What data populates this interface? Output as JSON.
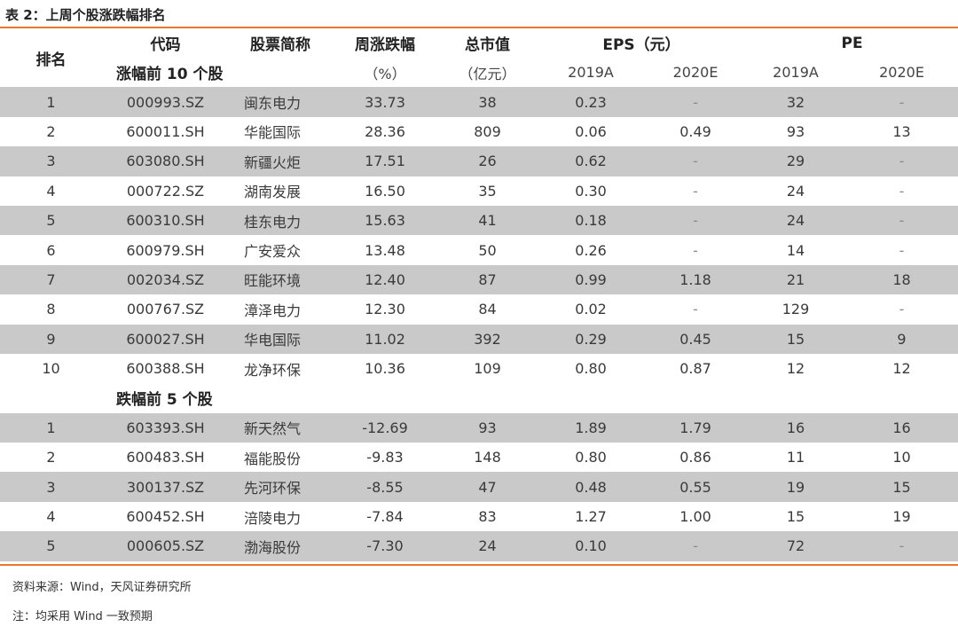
{
  "title": "表 2：上周个股涨跌幅排名",
  "headers": {
    "rank": "排名",
    "code": "代码",
    "name": "股票简称",
    "weekly_change": "周涨跌幅",
    "weekly_change_unit": "（%）",
    "market_cap": "总市值",
    "market_cap_unit": "（亿元）",
    "eps": "EPS（元）",
    "pe": "PE",
    "y2019": "2019A",
    "y2020": "2020E"
  },
  "sections": [
    {
      "label": "涨幅前 10 个股",
      "rows": [
        {
          "rank": "1",
          "code": "000993.SZ",
          "name": "闽东电力",
          "chg": "33.73",
          "cap": "38",
          "eps19": "0.23",
          "eps20": "-",
          "pe19": "32",
          "pe20": "-"
        },
        {
          "rank": "2",
          "code": "600011.SH",
          "name": "华能国际",
          "chg": "28.36",
          "cap": "809",
          "eps19": "0.06",
          "eps20": "0.49",
          "pe19": "93",
          "pe20": "13"
        },
        {
          "rank": "3",
          "code": "603080.SH",
          "name": "新疆火炬",
          "chg": "17.51",
          "cap": "26",
          "eps19": "0.62",
          "eps20": "-",
          "pe19": "29",
          "pe20": "-"
        },
        {
          "rank": "4",
          "code": "000722.SZ",
          "name": "湖南发展",
          "chg": "16.50",
          "cap": "35",
          "eps19": "0.30",
          "eps20": "-",
          "pe19": "24",
          "pe20": "-"
        },
        {
          "rank": "5",
          "code": "600310.SH",
          "name": "桂东电力",
          "chg": "15.63",
          "cap": "41",
          "eps19": "0.18",
          "eps20": "-",
          "pe19": "24",
          "pe20": "-"
        },
        {
          "rank": "6",
          "code": "600979.SH",
          "name": "广安爱众",
          "chg": "13.48",
          "cap": "50",
          "eps19": "0.26",
          "eps20": "-",
          "pe19": "14",
          "pe20": "-"
        },
        {
          "rank": "7",
          "code": "002034.SZ",
          "name": "旺能环境",
          "chg": "12.40",
          "cap": "87",
          "eps19": "0.99",
          "eps20": "1.18",
          "pe19": "21",
          "pe20": "18"
        },
        {
          "rank": "8",
          "code": "000767.SZ",
          "name": "漳泽电力",
          "chg": "12.30",
          "cap": "84",
          "eps19": "0.02",
          "eps20": "-",
          "pe19": "129",
          "pe20": "-"
        },
        {
          "rank": "9",
          "code": "600027.SH",
          "name": "华电国际",
          "chg": "11.02",
          "cap": "392",
          "eps19": "0.29",
          "eps20": "0.45",
          "pe19": "15",
          "pe20": "9"
        },
        {
          "rank": "10",
          "code": "600388.SH",
          "name": "龙净环保",
          "chg": "10.36",
          "cap": "109",
          "eps19": "0.80",
          "eps20": "0.87",
          "pe19": "12",
          "pe20": "12"
        }
      ]
    },
    {
      "label": "跌幅前 5 个股",
      "rows": [
        {
          "rank": "1",
          "code": "603393.SH",
          "name": "新天然气",
          "chg": "-12.69",
          "cap": "93",
          "eps19": "1.89",
          "eps20": "1.79",
          "pe19": "16",
          "pe20": "16"
        },
        {
          "rank": "2",
          "code": "600483.SH",
          "name": "福能股份",
          "chg": "-9.83",
          "cap": "148",
          "eps19": "0.80",
          "eps20": "0.86",
          "pe19": "11",
          "pe20": "10"
        },
        {
          "rank": "3",
          "code": "300137.SZ",
          "name": "先河环保",
          "chg": "-8.55",
          "cap": "47",
          "eps19": "0.48",
          "eps20": "0.55",
          "pe19": "19",
          "pe20": "15"
        },
        {
          "rank": "4",
          "code": "600452.SH",
          "name": "涪陵电力",
          "chg": "-7.84",
          "cap": "83",
          "eps19": "1.27",
          "eps20": "1.00",
          "pe19": "15",
          "pe20": "19"
        },
        {
          "rank": "5",
          "code": "000605.SZ",
          "name": "渤海股份",
          "chg": "-7.30",
          "cap": "24",
          "eps19": "0.10",
          "eps20": "-",
          "pe19": "72",
          "pe20": "-"
        }
      ]
    }
  ],
  "notes": {
    "source": "资料来源：Wind，天风证券研究所",
    "remark": "注：均采用 Wind 一致预期"
  }
}
